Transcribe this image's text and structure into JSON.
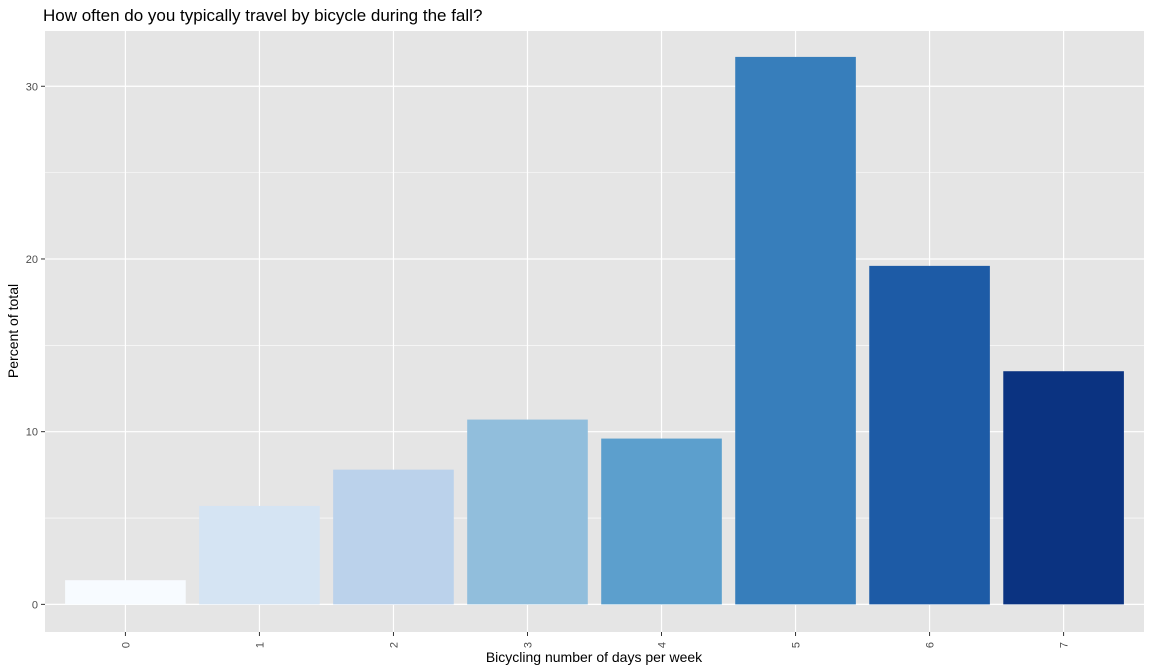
{
  "chart_data": {
    "type": "bar",
    "title": "How often do you typically travel by bicycle during the fall?",
    "xlabel": "Bicycling number of days per week",
    "ylabel": "Percent of total",
    "categories": [
      "0",
      "1",
      "2",
      "3",
      "4",
      "5",
      "6",
      "7"
    ],
    "values": [
      1.4,
      5.7,
      7.8,
      10.7,
      9.6,
      31.7,
      19.6,
      13.5
    ],
    "colors": [
      "#f7fbff",
      "#d5e4f3",
      "#bbd2eb",
      "#91bedc",
      "#5c9fcd",
      "#377ebb",
      "#1d5ba6",
      "#0b3381"
    ],
    "yticks": [
      0,
      10,
      20,
      30
    ],
    "ylim": [
      -1.6,
      33.2
    ],
    "grid": true,
    "panel_background": "#e5e5e5",
    "grid_color": "#ffffff",
    "legend": "none"
  }
}
